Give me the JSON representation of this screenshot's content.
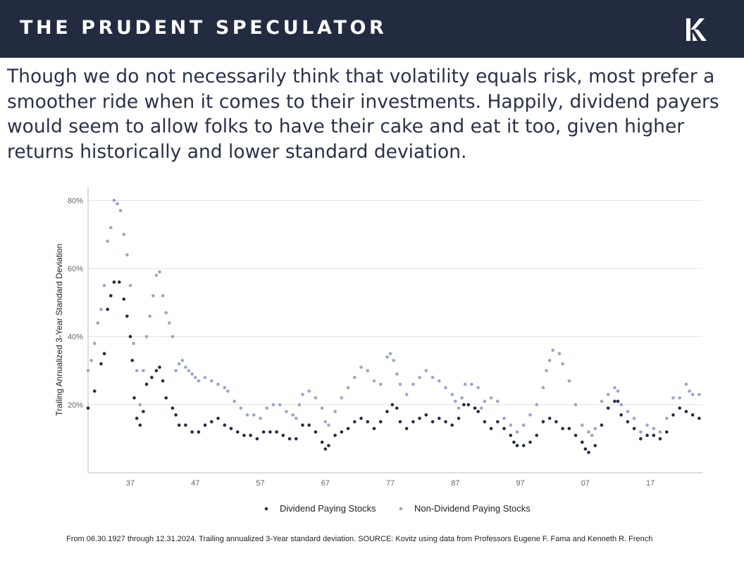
{
  "header": {
    "brand": "THE PRUDENT SPECULATOR",
    "logo_icon": "kovitz-k-logo-icon",
    "background": "#232b40"
  },
  "intro_text": "Though we do not necessarily think that volatility equals risk, most prefer a smoother ride when it comes to their investments. Happily, dividend payers would seem to allow folks to have their cake and eat it too, given higher returns historically and lower standard deviation.",
  "footnote": "From 06.30.1927 through 12.31.2024. Trailing annualized 3-Year standard deviation. SOURCE: Kovitz using data from Professors Eugene F. Fama and Kenneth R. French",
  "chart_data": {
    "type": "scatter",
    "title": "",
    "ylabel": "Trailing Annualized 3-Year Standard Deviation",
    "xlabel": "",
    "x_range": [
      1930.5,
      2025.0
    ],
    "ylim": [
      0,
      84
    ],
    "y_ticks": [
      20,
      40,
      60,
      80
    ],
    "y_tick_labels": [
      "20%",
      "40%",
      "60%",
      "80%"
    ],
    "x_ticks": [
      1937,
      1947,
      1957,
      1967,
      1977,
      1987,
      1997,
      2007,
      2017
    ],
    "x_tick_labels": [
      "37",
      "47",
      "57",
      "67",
      "77",
      "87",
      "97",
      "07",
      "17"
    ],
    "grid": "horizontal",
    "legend_position": "bottom",
    "series": [
      {
        "name": "Dividend Paying Stocks",
        "color": "#232b40",
        "points": [
          [
            1930.5,
            19
          ],
          [
            1931.5,
            24
          ],
          [
            1932.5,
            32
          ],
          [
            1933.0,
            35
          ],
          [
            1933.5,
            48
          ],
          [
            1934.0,
            52
          ],
          [
            1934.5,
            56
          ],
          [
            1935.3,
            56
          ],
          [
            1936.0,
            51
          ],
          [
            1936.5,
            46
          ],
          [
            1937.0,
            40
          ],
          [
            1937.3,
            33
          ],
          [
            1937.6,
            22
          ],
          [
            1938.0,
            16
          ],
          [
            1938.5,
            14
          ],
          [
            1939.0,
            18
          ],
          [
            1939.5,
            26
          ],
          [
            1940.3,
            28
          ],
          [
            1941.0,
            30
          ],
          [
            1941.5,
            31
          ],
          [
            1942.0,
            27
          ],
          [
            1942.5,
            22
          ],
          [
            1943.5,
            19
          ],
          [
            1944.0,
            17
          ],
          [
            1944.5,
            14
          ],
          [
            1945.5,
            14
          ],
          [
            1946.5,
            12
          ],
          [
            1947.5,
            12
          ],
          [
            1948.5,
            14
          ],
          [
            1949.5,
            15
          ],
          [
            1950.5,
            16
          ],
          [
            1951.5,
            14
          ],
          [
            1952.5,
            13
          ],
          [
            1953.5,
            12
          ],
          [
            1954.5,
            11
          ],
          [
            1955.5,
            11
          ],
          [
            1956.5,
            10
          ],
          [
            1957.5,
            12
          ],
          [
            1958.5,
            12
          ],
          [
            1959.5,
            12
          ],
          [
            1960.5,
            11
          ],
          [
            1961.5,
            10
          ],
          [
            1962.5,
            10
          ],
          [
            1963.5,
            14
          ],
          [
            1964.5,
            14
          ],
          [
            1965.5,
            12
          ],
          [
            1966.5,
            9
          ],
          [
            1967.0,
            7
          ],
          [
            1967.5,
            8
          ],
          [
            1968.5,
            11
          ],
          [
            1969.5,
            12
          ],
          [
            1970.5,
            13
          ],
          [
            1971.5,
            15
          ],
          [
            1972.5,
            16
          ],
          [
            1973.5,
            15
          ],
          [
            1974.5,
            13
          ],
          [
            1975.5,
            15
          ],
          [
            1976.5,
            18
          ],
          [
            1977.3,
            20
          ],
          [
            1978.0,
            19
          ],
          [
            1978.5,
            15
          ],
          [
            1979.5,
            13
          ],
          [
            1980.5,
            15
          ],
          [
            1981.5,
            16
          ],
          [
            1982.5,
            17
          ],
          [
            1983.5,
            15
          ],
          [
            1984.5,
            16
          ],
          [
            1985.5,
            15
          ],
          [
            1986.5,
            14
          ],
          [
            1987.5,
            16
          ],
          [
            1988.3,
            20
          ],
          [
            1989.0,
            20
          ],
          [
            1990.0,
            19
          ],
          [
            1990.5,
            18
          ],
          [
            1991.5,
            15
          ],
          [
            1992.5,
            13
          ],
          [
            1993.5,
            15
          ],
          [
            1994.5,
            13
          ],
          [
            1995.5,
            11
          ],
          [
            1996.0,
            9
          ],
          [
            1996.5,
            8
          ],
          [
            1997.5,
            8
          ],
          [
            1998.5,
            9
          ],
          [
            1999.5,
            11
          ],
          [
            2000.5,
            15
          ],
          [
            2001.5,
            16
          ],
          [
            2002.5,
            15
          ],
          [
            2003.5,
            13
          ],
          [
            2004.5,
            13
          ],
          [
            2005.5,
            11
          ],
          [
            2006.5,
            9
          ],
          [
            2007.0,
            7
          ],
          [
            2007.5,
            6
          ],
          [
            2008.5,
            8
          ],
          [
            2009.5,
            14
          ],
          [
            2010.5,
            19
          ],
          [
            2011.5,
            21
          ],
          [
            2012.0,
            21
          ],
          [
            2012.5,
            17
          ],
          [
            2013.5,
            15
          ],
          [
            2014.5,
            13
          ],
          [
            2015.5,
            10
          ],
          [
            2016.5,
            11
          ],
          [
            2017.5,
            11
          ],
          [
            2018.5,
            10
          ],
          [
            2019.5,
            12
          ],
          [
            2020.5,
            17
          ],
          [
            2021.5,
            19
          ],
          [
            2022.5,
            18
          ],
          [
            2023.5,
            17
          ],
          [
            2024.5,
            16
          ]
        ]
      },
      {
        "name": "Non-Dividend Paying Stocks",
        "color": "#9aa6c8",
        "points": [
          [
            1930.5,
            30
          ],
          [
            1931.0,
            33
          ],
          [
            1931.5,
            38
          ],
          [
            1932.0,
            44
          ],
          [
            1932.5,
            48
          ],
          [
            1933.0,
            55
          ],
          [
            1933.5,
            68
          ],
          [
            1934.0,
            72
          ],
          [
            1934.5,
            80
          ],
          [
            1935.0,
            79
          ],
          [
            1935.5,
            77
          ],
          [
            1936.0,
            70
          ],
          [
            1936.5,
            64
          ],
          [
            1937.0,
            55
          ],
          [
            1937.5,
            38
          ],
          [
            1938.0,
            30
          ],
          [
            1938.5,
            20
          ],
          [
            1939.0,
            30
          ],
          [
            1939.5,
            40
          ],
          [
            1940.0,
            46
          ],
          [
            1940.5,
            52
          ],
          [
            1941.0,
            58
          ],
          [
            1941.5,
            59
          ],
          [
            1942.0,
            52
          ],
          [
            1942.5,
            47
          ],
          [
            1943.0,
            44
          ],
          [
            1943.5,
            40
          ],
          [
            1944.0,
            30
          ],
          [
            1944.5,
            32
          ],
          [
            1945.0,
            33
          ],
          [
            1945.5,
            31
          ],
          [
            1946.0,
            30
          ],
          [
            1946.5,
            29
          ],
          [
            1947.0,
            28
          ],
          [
            1947.5,
            27
          ],
          [
            1948.5,
            28
          ],
          [
            1949.5,
            27
          ],
          [
            1950.5,
            26
          ],
          [
            1951.5,
            25
          ],
          [
            1952.0,
            24
          ],
          [
            1953.0,
            21
          ],
          [
            1954.0,
            19
          ],
          [
            1955.0,
            17
          ],
          [
            1956.0,
            17
          ],
          [
            1957.0,
            16
          ],
          [
            1958.0,
            19
          ],
          [
            1959.0,
            20
          ],
          [
            1960.0,
            20
          ],
          [
            1961.0,
            18
          ],
          [
            1962.0,
            17
          ],
          [
            1962.5,
            16
          ],
          [
            1963.0,
            20
          ],
          [
            1963.5,
            23
          ],
          [
            1964.5,
            24
          ],
          [
            1965.5,
            22
          ],
          [
            1966.5,
            19
          ],
          [
            1967.0,
            15
          ],
          [
            1967.5,
            14
          ],
          [
            1968.5,
            18
          ],
          [
            1969.5,
            22
          ],
          [
            1970.5,
            25
          ],
          [
            1971.5,
            28
          ],
          [
            1972.5,
            31
          ],
          [
            1973.5,
            30
          ],
          [
            1974.5,
            27
          ],
          [
            1975.5,
            26
          ],
          [
            1976.5,
            34
          ],
          [
            1977.0,
            35
          ],
          [
            1977.5,
            33
          ],
          [
            1978.0,
            29
          ],
          [
            1978.5,
            26
          ],
          [
            1979.5,
            23
          ],
          [
            1980.5,
            26
          ],
          [
            1981.5,
            28
          ],
          [
            1982.5,
            30
          ],
          [
            1983.5,
            28
          ],
          [
            1984.5,
            27
          ],
          [
            1985.5,
            25
          ],
          [
            1986.5,
            23
          ],
          [
            1987.0,
            21
          ],
          [
            1987.5,
            19
          ],
          [
            1988.0,
            22
          ],
          [
            1988.5,
            26
          ],
          [
            1989.5,
            26
          ],
          [
            1990.5,
            25
          ],
          [
            1991.0,
            19
          ],
          [
            1991.5,
            21
          ],
          [
            1992.5,
            22
          ],
          [
            1993.5,
            21
          ],
          [
            1994.5,
            16
          ],
          [
            1995.5,
            14
          ],
          [
            1996.5,
            12
          ],
          [
            1997.5,
            14
          ],
          [
            1998.5,
            17
          ],
          [
            1999.5,
            20
          ],
          [
            2000.5,
            25
          ],
          [
            2001.0,
            30
          ],
          [
            2001.5,
            33
          ],
          [
            2002.0,
            36
          ],
          [
            2003.0,
            35
          ],
          [
            2003.5,
            32
          ],
          [
            2004.5,
            27
          ],
          [
            2005.5,
            20
          ],
          [
            2006.5,
            14
          ],
          [
            2007.5,
            12
          ],
          [
            2008.0,
            11
          ],
          [
            2008.5,
            13
          ],
          [
            2009.5,
            21
          ],
          [
            2010.5,
            23
          ],
          [
            2011.5,
            25
          ],
          [
            2012.0,
            24
          ],
          [
            2012.5,
            20
          ],
          [
            2013.5,
            18
          ],
          [
            2014.5,
            16
          ],
          [
            2015.5,
            12
          ],
          [
            2016.5,
            14
          ],
          [
            2017.5,
            13
          ],
          [
            2018.5,
            12
          ],
          [
            2019.5,
            16
          ],
          [
            2020.5,
            22
          ],
          [
            2021.5,
            22
          ],
          [
            2022.5,
            26
          ],
          [
            2023.0,
            24
          ],
          [
            2023.5,
            23
          ],
          [
            2024.5,
            23
          ]
        ]
      }
    ]
  }
}
